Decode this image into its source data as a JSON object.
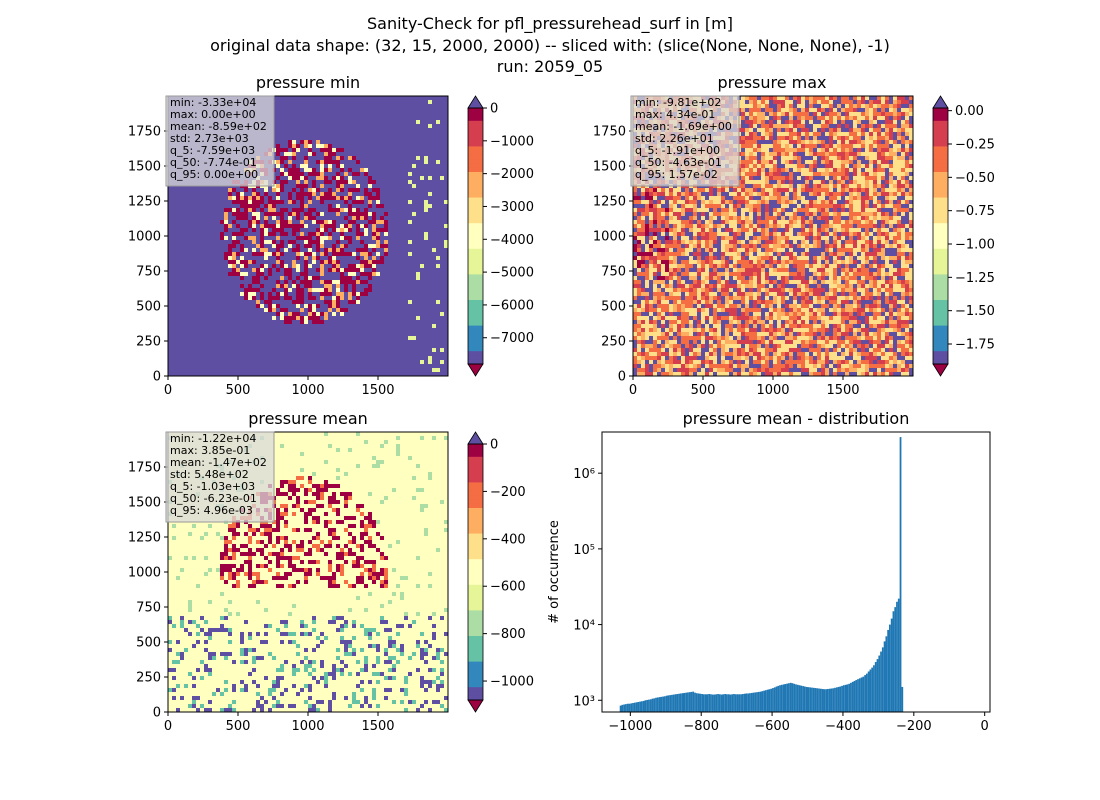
{
  "figure": {
    "title_lines": [
      "Sanity-Check for pfl_pressurehead_surf in [m]",
      "original data shape: (32, 15, 2000, 2000) -- sliced with: (slice(None, None, None), -1)",
      "run: 2059_05"
    ]
  },
  "panels": [
    {
      "id": "min",
      "title": "pressure min",
      "stats": [
        "min: -3.33e+04",
        "max: 0.00e+00",
        "mean: -8.59e+02",
        "std: 2.73e+03",
        "q_5: -7.59e+03",
        "q_50: -7.74e-01",
        "q_95: 0.00e+00"
      ],
      "colorbar": {
        "vmin": -7800,
        "vmax": 0,
        "ticks": [
          "0",
          "−1000",
          "−2000",
          "−3000",
          "−4000",
          "−5000",
          "−6000",
          "−7000"
        ],
        "tick_values": [
          0,
          -1000,
          -2000,
          -3000,
          -4000,
          -5000,
          -6000,
          -7000
        ],
        "extend_top": true,
        "extend_bottom": true
      }
    },
    {
      "id": "max",
      "title": "pressure max",
      "stats": [
        "min: -9.81e+02",
        "max: 4.34e-01",
        "mean: -1.69e+00",
        "std: 2.26e+01",
        "q_5: -1.91e+00",
        "q_50: -4.63e-01",
        "q_95: 1.57e-02"
      ],
      "colorbar": {
        "vmin": -1.9,
        "vmax": 0.02,
        "ticks": [
          "0.00",
          "−0.25",
          "−0.50",
          "−0.75",
          "−1.00",
          "−1.25",
          "−1.50",
          "−1.75"
        ],
        "tick_values": [
          0,
          -0.25,
          -0.5,
          -0.75,
          -1.0,
          -1.25,
          -1.5,
          -1.75
        ],
        "extend_top": true,
        "extend_bottom": true
      }
    },
    {
      "id": "mean",
      "title": "pressure mean",
      "stats": [
        "min: -1.22e+04",
        "max: 3.85e-01",
        "mean: -1.47e+02",
        "std: 5.48e+02",
        "q_5: -1.03e+03",
        "q_50: -6.23e-01",
        "q_95: 4.96e-03"
      ],
      "colorbar": {
        "vmin": -1080,
        "vmax": 0,
        "ticks": [
          "0",
          "−200",
          "−400",
          "−600",
          "−800",
          "−1000"
        ],
        "tick_values": [
          0,
          -200,
          -400,
          -600,
          -800,
          -1000
        ],
        "extend_top": true,
        "extend_bottom": true
      }
    }
  ],
  "map_axes": {
    "x_ticks": [
      "0",
      "500",
      "1000",
      "1500"
    ],
    "x_tick_values": [
      0,
      500,
      1000,
      1500
    ],
    "y_ticks": [
      "0",
      "250",
      "500",
      "750",
      "1000",
      "1250",
      "1500",
      "1750"
    ],
    "y_tick_values": [
      0,
      250,
      500,
      750,
      1000,
      1250,
      1500,
      1750
    ],
    "xlim": [
      0,
      2000
    ],
    "ylim": [
      0,
      2000
    ]
  },
  "colors": {
    "spectral": [
      "#9e0142",
      "#d53e4f",
      "#f46d43",
      "#fdae61",
      "#fee08b",
      "#ffffbf",
      "#e6f598",
      "#abdda4",
      "#66c2a5",
      "#3288bd",
      "#5e4fa2"
    ],
    "histogram_bar": "#1f77b4",
    "stats_box_bg": "#d9d9d9"
  },
  "chart_data": {
    "type": "bar",
    "title": "pressure mean - distribution",
    "ylabel": "# of occurrence",
    "xlabel": "",
    "yscale": "log",
    "xlim": [
      -1080,
      15
    ],
    "ylim": [
      700,
      3500000
    ],
    "x_ticks": [
      "−1000",
      "−800",
      "−600",
      "−400",
      "−200",
      "0"
    ],
    "x_tick_values": [
      -1000,
      -800,
      -600,
      -400,
      -200,
      0
    ],
    "y_ticks": [
      "10³",
      "10⁴",
      "10⁵",
      "10⁶"
    ],
    "y_tick_values": [
      1000,
      10000,
      100000,
      1000000
    ],
    "series": [
      {
        "x_start": -1030,
        "bin_width": 5,
        "values": [
          850,
          870,
          880,
          890,
          900,
          900,
          910,
          920,
          930,
          940,
          950,
          960,
          970,
          980,
          1000,
          1010,
          1020,
          1030,
          1050,
          1060,
          1080,
          1090,
          1100,
          1110,
          1120,
          1130,
          1150,
          1160,
          1170,
          1180,
          1190,
          1200,
          1210,
          1220,
          1230,
          1240,
          1250,
          1260,
          1270,
          1280,
          1290,
          1300,
          1260,
          1240,
          1230,
          1220,
          1210,
          1200,
          1200,
          1200,
          1210,
          1200,
          1190,
          1190,
          1200,
          1210,
          1200,
          1190,
          1200,
          1210,
          1200,
          1200,
          1190,
          1200,
          1210,
          1200,
          1200,
          1200,
          1200,
          1210,
          1220,
          1230,
          1230,
          1240,
          1250,
          1260,
          1270,
          1280,
          1290,
          1300,
          1320,
          1340,
          1360,
          1380,
          1400,
          1420,
          1450,
          1480,
          1520,
          1550,
          1580,
          1600,
          1620,
          1640,
          1660,
          1680,
          1700,
          1680,
          1650,
          1620,
          1600,
          1580,
          1560,
          1540,
          1520,
          1500,
          1490,
          1480,
          1470,
          1460,
          1450,
          1440,
          1430,
          1420,
          1410,
          1400,
          1400,
          1410,
          1420,
          1430,
          1440,
          1460,
          1480,
          1500,
          1520,
          1550,
          1580,
          1600,
          1620,
          1650,
          1700,
          1750,
          1800,
          1850,
          1900,
          1950,
          2000,
          2050,
          2150,
          2250,
          2400,
          2550,
          2700,
          2900,
          3200,
          3500,
          3900,
          4400,
          5000,
          6000,
          7000,
          8500,
          10000,
          12000,
          15000,
          17000,
          20000,
          22000,
          3000000,
          1500
        ]
      }
    ]
  }
}
